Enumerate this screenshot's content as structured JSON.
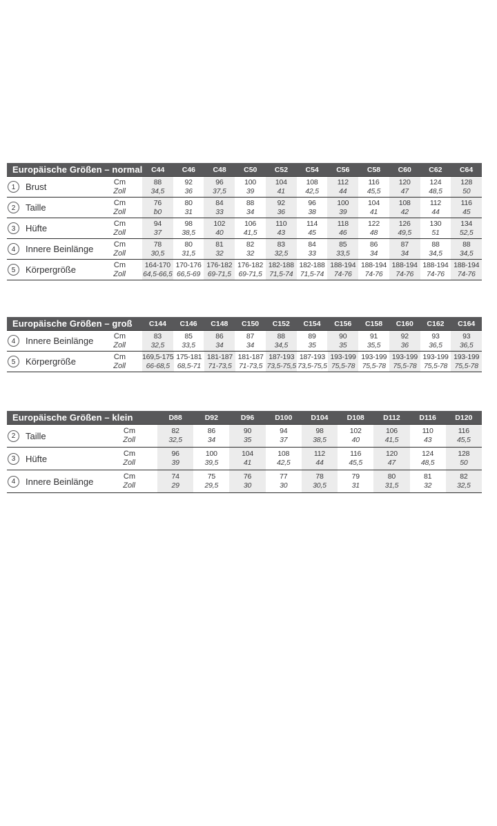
{
  "units": {
    "cm": "Cm",
    "zoll": "Zoll"
  },
  "colors": {
    "header_bar": "#58585a",
    "header_text": "#ffffff",
    "shaded_column": "#ececec",
    "rule_line": "#2b2b2b",
    "body_text": "#2f2f31"
  },
  "tables": [
    {
      "title": "Europäische Größen – normal",
      "columns": [
        "C44",
        "C46",
        "C48",
        "C50",
        "C52",
        "C54",
        "C56",
        "C58",
        "C60",
        "C62",
        "C64"
      ],
      "rows": [
        {
          "num": "1",
          "label": "Brust",
          "cm": [
            "88",
            "92",
            "96",
            "100",
            "104",
            "108",
            "112",
            "116",
            "120",
            "124",
            "128"
          ],
          "zoll": [
            "34,5",
            "36",
            "37,5",
            "39",
            "41",
            "42,5",
            "44",
            "45,5",
            "47",
            "48,5",
            "50"
          ]
        },
        {
          "num": "2",
          "label": "Taille",
          "cm": [
            "76",
            "80",
            "84",
            "88",
            "92",
            "96",
            "100",
            "104",
            "108",
            "112",
            "116"
          ],
          "zoll": [
            "ƀ0",
            "31",
            "33",
            "34",
            "36",
            "38",
            "39",
            "41",
            "42",
            "44",
            "45"
          ]
        },
        {
          "num": "3",
          "label": "Hüfte",
          "cm": [
            "94",
            "98",
            "102",
            "106",
            "110",
            "114",
            "118",
            "122",
            "126",
            "130",
            "134"
          ],
          "zoll": [
            "37",
            "38,5",
            "40",
            "41,5",
            "43",
            "45",
            "46",
            "48",
            "49,5",
            "51",
            "52,5"
          ]
        },
        {
          "num": "4",
          "label": "Innere Beinlänge",
          "cm": [
            "78",
            "80",
            "81",
            "82",
            "83",
            "84",
            "85",
            "86",
            "87",
            "88",
            "88"
          ],
          "zoll": [
            "30,5",
            "31,5",
            "32",
            "32",
            "32,5",
            "33",
            "33,5",
            "34",
            "34",
            "34,5",
            "34,5"
          ]
        },
        {
          "num": "5",
          "label": "Körpergröße",
          "cm": [
            "164-170",
            "170-176",
            "176-182",
            "176-182",
            "182-188",
            "182-188",
            "188-194",
            "188-194",
            "188-194",
            "188-194",
            "188-194"
          ],
          "zoll": [
            "64,5-66,5",
            "66,5-69",
            "69-71,5",
            "69-71,5",
            "71,5-74",
            "71,5-74",
            "74-76",
            "74-76",
            "74-76",
            "74-76",
            "74-76"
          ]
        }
      ]
    },
    {
      "title": "Europäische Größen – groß",
      "columns": [
        "C144",
        "C146",
        "C148",
        "C150",
        "C152",
        "C154",
        "C156",
        "C158",
        "C160",
        "C162",
        "C164"
      ],
      "rows": [
        {
          "num": "4",
          "label": "Innere Beinlänge",
          "cm": [
            "83",
            "85",
            "86",
            "87",
            "88",
            "89",
            "90",
            "91",
            "92",
            "93",
            "93"
          ],
          "zoll": [
            "32,5",
            "33,5",
            "34",
            "34",
            "34,5",
            "35",
            "35",
            "35,5",
            "36",
            "36,5",
            "36,5"
          ]
        },
        {
          "num": "5",
          "label": "Körpergröße",
          "cm": [
            "169,5-175",
            "175-181",
            "181-187",
            "181-187",
            "187-193",
            "187-193",
            "193-199",
            "193-199",
            "193-199",
            "193-199",
            "193-199"
          ],
          "zoll": [
            "66-68,5",
            "68,5-71",
            "71-73,5",
            "71-73,5",
            "73,5-75,5",
            "73,5-75,5",
            "75,5-78",
            "75,5-78",
            "75,5-78",
            "75,5-78",
            "75,5-78"
          ]
        }
      ]
    },
    {
      "title": "Europäische Größen – klein",
      "columns": [
        "D88",
        "D92",
        "D96",
        "D100",
        "D104",
        "D108",
        "D112",
        "D116",
        "D120"
      ],
      "rows": [
        {
          "num": "2",
          "label": "Taille",
          "cm": [
            "82",
            "86",
            "90",
            "94",
            "98",
            "102",
            "106",
            "110",
            "116"
          ],
          "zoll": [
            "32,5",
            "34",
            "35",
            "37",
            "38,5",
            "40",
            "41,5",
            "43",
            "45,5"
          ]
        },
        {
          "num": "3",
          "label": "Hüfte",
          "cm": [
            "96",
            "100",
            "104",
            "108",
            "112",
            "116",
            "120",
            "124",
            "128"
          ],
          "zoll": [
            "39",
            "39,5",
            "41",
            "42,5",
            "44",
            "45,5",
            "47",
            "48,5",
            "50"
          ]
        },
        {
          "num": "4",
          "label": "Innere Beinlänge",
          "cm": [
            "74",
            "75",
            "76",
            "77",
            "78",
            "79",
            "80",
            "81",
            "82"
          ],
          "zoll": [
            "29",
            "29,5",
            "30",
            "30",
            "30,5",
            "31",
            "31,5",
            "32",
            "32,5"
          ]
        }
      ]
    }
  ]
}
